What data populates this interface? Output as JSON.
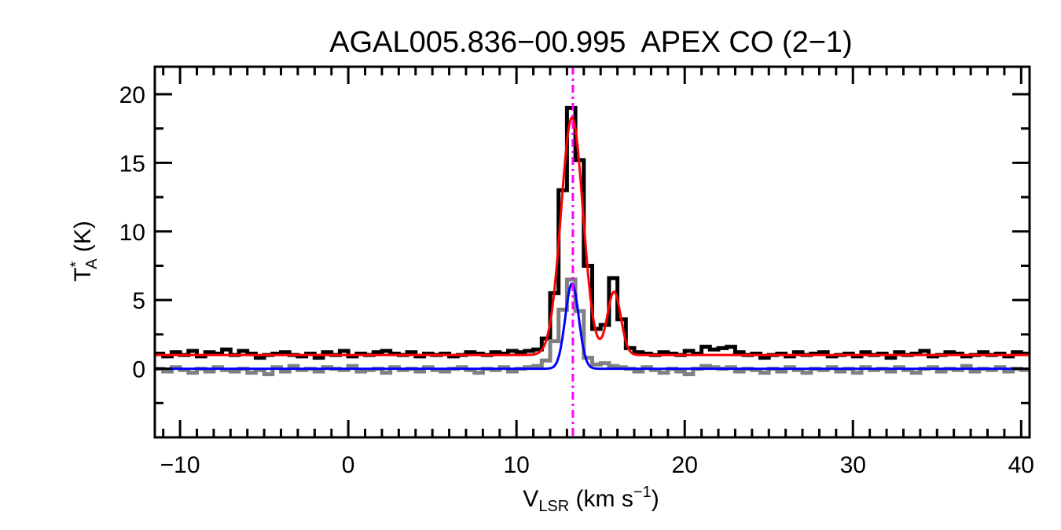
{
  "chart_data": {
    "type": "line",
    "title": "AGAL005.836−00.995  APEX CO (2−1)",
    "xlabel": {
      "main": "V",
      "sub": "LSR",
      "rest": " (km s",
      "sup": "−1",
      "close": ")"
    },
    "ylabel": {
      "main": "T",
      "sup": "*",
      "sub": "A",
      "rest": " (K)"
    },
    "xlim": [
      -11.5,
      40.5
    ],
    "ylim": [
      -5,
      22
    ],
    "x_ticks": [
      -10,
      0,
      10,
      20,
      30,
      40
    ],
    "x_tick_labels": [
      "−10",
      "0",
      "10",
      "20",
      "30",
      "40"
    ],
    "y_ticks": [
      0,
      5,
      10,
      15,
      20
    ],
    "y_tick_labels": [
      "0",
      "5",
      "10",
      "15",
      "20"
    ],
    "x_minor_step": 1,
    "y_minor_step": 2.5,
    "grid": false,
    "reference_velocity": 13.35,
    "colors": {
      "spectrum": "#000000",
      "spectrum_shifted": "#808080",
      "fit": "#ff0000",
      "fit_shifted": "#0000ff",
      "reference_line": "#ff00ff"
    },
    "x": [
      -11.25,
      -10.75,
      -10.25,
      -9.75,
      -9.25,
      -8.75,
      -8.25,
      -7.75,
      -7.25,
      -6.75,
      -6.25,
      -5.75,
      -5.25,
      -4.75,
      -4.25,
      -3.75,
      -3.25,
      -2.75,
      -2.25,
      -1.75,
      -1.25,
      -0.75,
      -0.25,
      0.25,
      0.75,
      1.25,
      1.75,
      2.25,
      2.75,
      3.25,
      3.75,
      4.25,
      4.75,
      5.25,
      5.75,
      6.25,
      6.75,
      7.25,
      7.75,
      8.25,
      8.75,
      9.25,
      9.75,
      10.25,
      10.75,
      11.25,
      11.75,
      12.25,
      12.75,
      13.25,
      13.75,
      14.25,
      14.75,
      15.25,
      15.75,
      16.25,
      16.75,
      17.25,
      17.75,
      18.25,
      18.75,
      19.25,
      19.75,
      20.25,
      20.75,
      21.25,
      21.75,
      22.25,
      22.75,
      23.25,
      23.75,
      24.25,
      24.75,
      25.25,
      25.75,
      26.25,
      26.75,
      27.25,
      27.75,
      28.25,
      28.75,
      29.25,
      29.75,
      30.25,
      30.75,
      31.25,
      31.75,
      32.25,
      32.75,
      33.25,
      33.75,
      34.25,
      34.75,
      35.25,
      35.75,
      36.25,
      36.75,
      37.25,
      37.75,
      38.25,
      38.75,
      39.25,
      39.75,
      40.25
    ],
    "series": [
      {
        "style": "histogram",
        "color": "#000000",
        "values": [
          1.1,
          0.9,
          1.2,
          1.0,
          1.3,
          0.9,
          1.2,
          1.1,
          1.4,
          1.0,
          1.3,
          1.1,
          0.8,
          1.0,
          1.1,
          1.2,
          1.0,
          0.9,
          1.1,
          0.8,
          1.2,
          1.0,
          1.3,
          0.9,
          1.1,
          1.0,
          1.2,
          1.3,
          1.1,
          1.0,
          1.2,
          0.9,
          1.1,
          1.0,
          1.1,
          0.9,
          1.0,
          1.2,
          1.1,
          1.0,
          1.2,
          1.1,
          1.3,
          1.2,
          1.3,
          1.4,
          2.2,
          5.5,
          13.0,
          19.0,
          15.2,
          7.5,
          2.9,
          3.2,
          6.6,
          3.6,
          1.5,
          1.2,
          1.1,
          1.0,
          1.2,
          1.1,
          1.0,
          1.3,
          1.1,
          1.6,
          1.4,
          1.5,
          1.6,
          1.2,
          1.0,
          1.1,
          0.8,
          1.0,
          1.1,
          0.9,
          1.2,
          1.0,
          1.1,
          1.2,
          0.9,
          1.0,
          1.1,
          0.9,
          1.2,
          1.0,
          1.1,
          0.8,
          1.2,
          1.0,
          1.1,
          1.3,
          0.9,
          1.0,
          1.2,
          1.1,
          0.9,
          1.0,
          1.2,
          1.0,
          1.1,
          0.9,
          1.2,
          1.1
        ]
      },
      {
        "style": "histogram",
        "color": "#808080",
        "values": [
          0.0,
          -0.2,
          0.1,
          -0.1,
          -0.3,
          0.0,
          -0.2,
          0.1,
          -0.1,
          -0.2,
          0.0,
          -0.3,
          -0.1,
          -0.4,
          0.1,
          -0.2,
          0.2,
          -0.1,
          0.0,
          -0.2,
          0.1,
          0.0,
          -0.1,
          0.2,
          -0.2,
          -0.1,
          0.0,
          -0.3,
          0.1,
          -0.1,
          0.0,
          -0.2,
          0.1,
          -0.1,
          -0.2,
          0.0,
          0.1,
          -0.1,
          -0.3,
          0.0,
          -0.1,
          0.1,
          -0.2,
          0.0,
          0.1,
          0.2,
          0.6,
          2.0,
          4.3,
          6.5,
          4.2,
          0.8,
          0.3,
          0.4,
          0.2,
          0.1,
          0.0,
          -0.2,
          0.1,
          -0.1,
          -0.3,
          0.0,
          -0.2,
          -0.4,
          0.0,
          0.2,
          0.1,
          0.0,
          0.1,
          -0.2,
          0.0,
          -0.1,
          -0.3,
          0.0,
          -0.2,
          0.1,
          -0.1,
          -0.3,
          0.0,
          -0.1,
          0.1,
          -0.2,
          0.0,
          -0.3,
          0.1,
          -0.1,
          0.0,
          -0.2,
          0.1,
          -0.1,
          -0.3,
          0.0,
          0.1,
          -0.2,
          0.0,
          -0.1,
          0.2,
          -0.2,
          0.0,
          -0.1,
          0.1,
          -0.2,
          0.0,
          -0.1
        ]
      }
    ],
    "fits": [
      {
        "color": "#ff0000",
        "baseline": 1.0,
        "components": [
          {
            "amp": 17.3,
            "center": 13.3,
            "sigma": 0.65
          },
          {
            "amp": 4.6,
            "center": 15.8,
            "sigma": 0.4
          }
        ]
      },
      {
        "color": "#0000ff",
        "baseline": 0.0,
        "components": [
          {
            "amp": 6.2,
            "center": 13.3,
            "sigma": 0.4
          }
        ]
      }
    ]
  }
}
